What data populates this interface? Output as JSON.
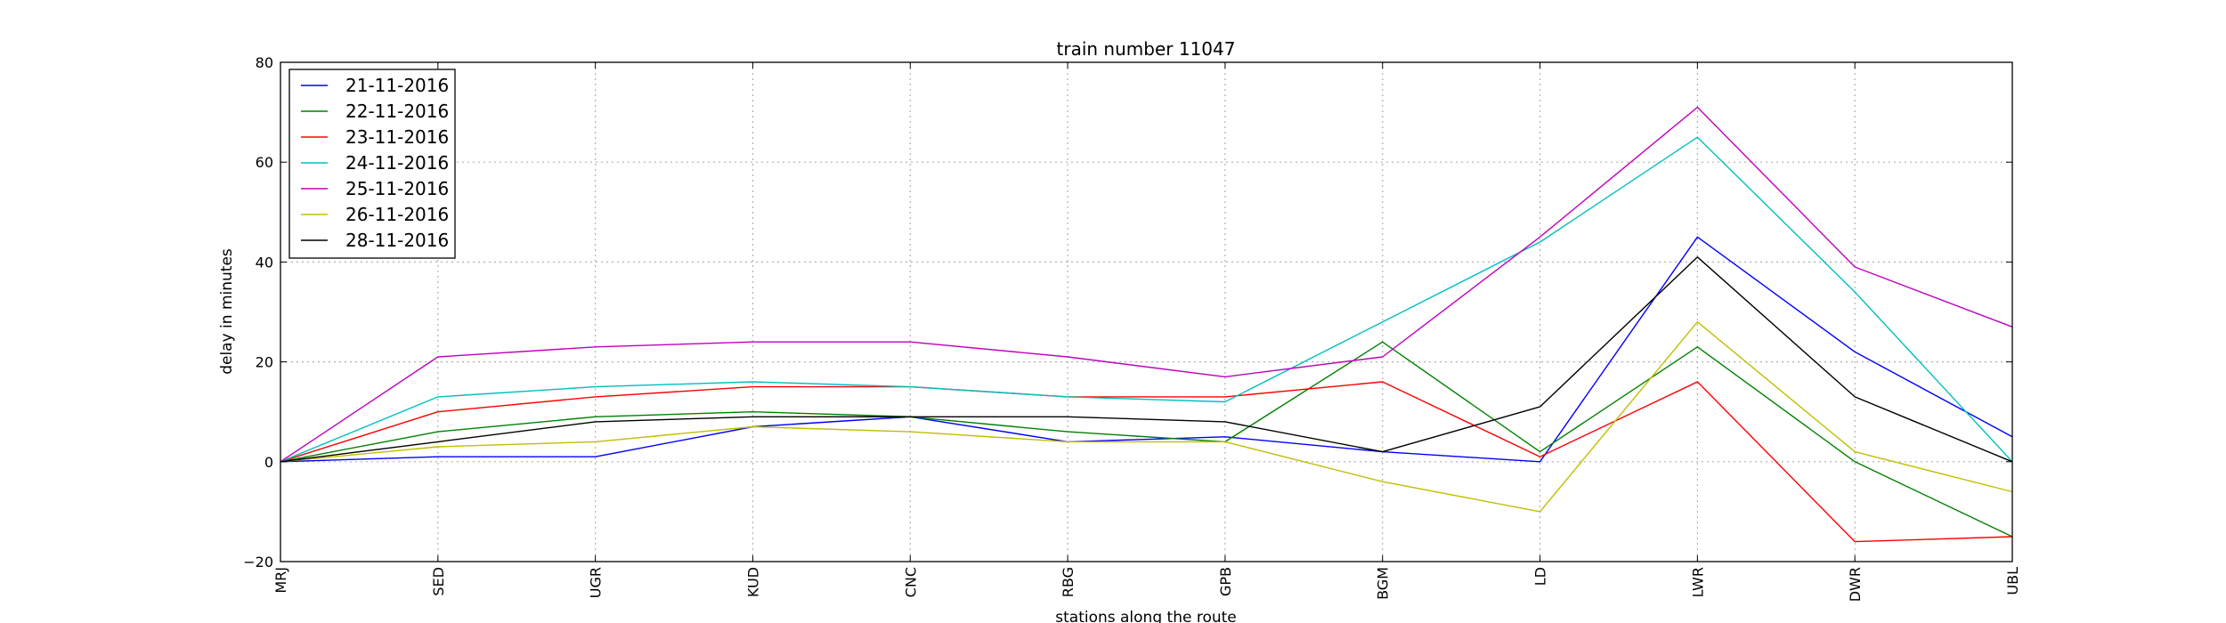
{
  "chart_data": {
    "type": "line",
    "title": "train number 11047",
    "xlabel": "stations along the route",
    "ylabel": "delay in minutes",
    "categories": [
      "MRJ",
      "SED",
      "UGR",
      "KUD",
      "CNC",
      "RBG",
      "GPB",
      "BGM",
      "LD",
      "LWR",
      "DWR",
      "UBL"
    ],
    "ylim": [
      -20,
      80
    ],
    "yticks": [
      -20,
      0,
      20,
      40,
      60,
      80
    ],
    "grid": true,
    "legend_position": "top-left",
    "series": [
      {
        "name": "21-11-2016",
        "color": "#0000ff",
        "values": [
          0,
          1,
          1,
          7,
          9,
          4,
          5,
          2,
          0,
          45,
          22,
          5
        ]
      },
      {
        "name": "22-11-2016",
        "color": "#008000",
        "values": [
          0,
          6,
          9,
          10,
          9,
          6,
          4,
          24,
          2,
          23,
          0,
          -15
        ]
      },
      {
        "name": "23-11-2016",
        "color": "#ff0000",
        "values": [
          0,
          10,
          13,
          15,
          15,
          13,
          13,
          16,
          1,
          16,
          -16,
          -15
        ]
      },
      {
        "name": "24-11-2016",
        "color": "#00bfbf",
        "values": [
          0,
          13,
          15,
          16,
          15,
          13,
          12,
          28,
          44,
          65,
          34,
          0
        ]
      },
      {
        "name": "25-11-2016",
        "color": "#bf00bf",
        "values": [
          0,
          21,
          23,
          24,
          24,
          21,
          17,
          21,
          45,
          71,
          39,
          27
        ]
      },
      {
        "name": "26-11-2016",
        "color": "#bfbf00",
        "values": [
          0,
          3,
          4,
          7,
          6,
          4,
          4,
          -4,
          -10,
          28,
          2,
          -6
        ]
      },
      {
        "name": "28-11-2016",
        "color": "#000000",
        "values": [
          0,
          4,
          8,
          9,
          9,
          9,
          8,
          2,
          11,
          41,
          13,
          0
        ]
      }
    ]
  }
}
